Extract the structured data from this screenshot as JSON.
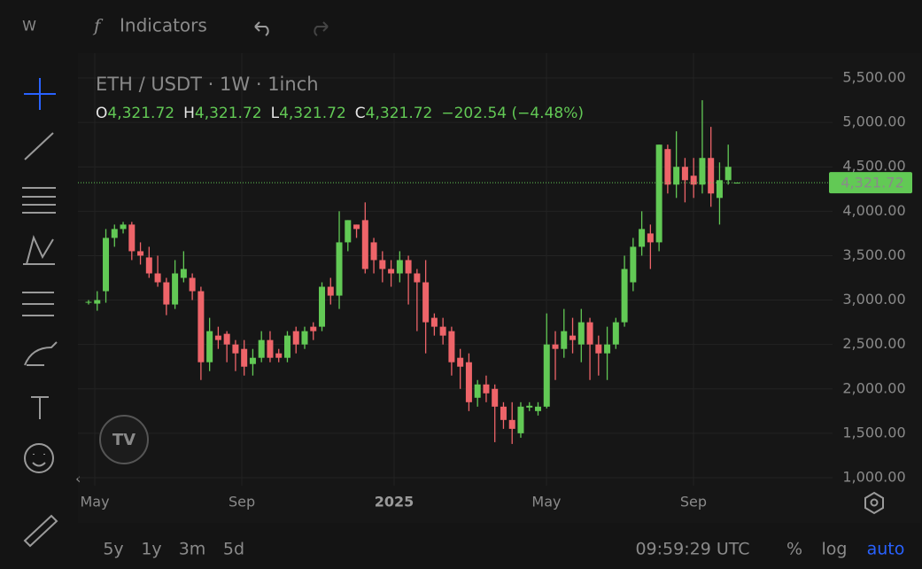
{
  "chart_data": {
    "type": "candlestick",
    "title": "ETH / USDT · 1W · 1inch",
    "ohlc_labels": [
      "O",
      "H",
      "L",
      "C"
    ],
    "ohlc_values": [
      "4,321.72",
      "4,321.72",
      "4,321.72",
      "4,321.72"
    ],
    "change": "−202.54 (−4.48%)",
    "up_color": "#62c955",
    "down_color": "#ee6469",
    "open": [
      2970,
      2960,
      3100,
      3700,
      3800,
      3850,
      3550,
      3480,
      3300,
      3200,
      2950,
      3250,
      3250,
      3100,
      2300,
      2600,
      2620,
      2500,
      2450,
      2280,
      2350,
      2550,
      2400,
      2350,
      2650,
      2500,
      2700,
      2700,
      3150,
      3050,
      3650,
      3850,
      3900,
      3650,
      3450,
      3350,
      3300,
      3450,
      3300,
      3200,
      2800,
      2700,
      2650,
      2350,
      2300,
      1900,
      2050,
      2000,
      1800,
      1650,
      1500,
      1790,
      1750,
      1800,
      2500,
      2450,
      2600,
      2500,
      2750,
      2500,
      2400,
      2500,
      2750,
      3200,
      3600,
      3750,
      3650,
      4700,
      4300,
      4500,
      4400,
      4300,
      4600,
      4150,
      4350,
      4320
    ],
    "high": [
      3000,
      3100,
      3800,
      3850,
      3880,
      3880,
      3650,
      3600,
      3500,
      3250,
      3450,
      3550,
      3300,
      3150,
      2800,
      2700,
      2650,
      2550,
      2550,
      2450,
      2650,
      2650,
      2450,
      2650,
      2700,
      2700,
      2750,
      3200,
      3250,
      4000,
      3900,
      3850,
      4100,
      3700,
      3550,
      3450,
      3550,
      3500,
      3350,
      3450,
      2850,
      2800,
      2700,
      2450,
      2400,
      2100,
      2150,
      2050,
      1850,
      1850,
      1850,
      1850,
      1850,
      2850,
      2650,
      2900,
      2800,
      2900,
      2800,
      2600,
      2700,
      2800,
      3500,
      3700,
      4000,
      3850,
      4750,
      4750,
      4900,
      4600,
      4600,
      5250,
      4950,
      4550,
      4750,
      4322
    ],
    "low": [
      2950,
      2880,
      2970,
      3600,
      3750,
      3450,
      3400,
      3250,
      3150,
      2830,
      2900,
      3200,
      3000,
      2100,
      2200,
      2450,
      2300,
      2200,
      2150,
      2150,
      2300,
      2300,
      2300,
      2300,
      2400,
      2450,
      2550,
      2650,
      2950,
      2900,
      3550,
      3700,
      3300,
      3300,
      3200,
      3150,
      3200,
      2950,
      2650,
      2400,
      2600,
      2500,
      2150,
      2000,
      1750,
      1800,
      1850,
      1400,
      1550,
      1380,
      1450,
      1750,
      1700,
      1780,
      2100,
      2350,
      2400,
      2300,
      2100,
      2150,
      2100,
      2450,
      2700,
      3100,
      3500,
      3350,
      3550,
      4200,
      4150,
      4100,
      4150,
      4200,
      4050,
      3850,
      4300,
      4320
    ],
    "close": [
      2980,
      3000,
      3700,
      3800,
      3850,
      3550,
      3500,
      3300,
      3200,
      2950,
      3300,
      3350,
      3100,
      2300,
      2650,
      2550,
      2500,
      2400,
      2250,
      2350,
      2550,
      2350,
      2350,
      2600,
      2500,
      2650,
      2650,
      3150,
      3050,
      3650,
      3900,
      3800,
      3350,
      3450,
      3350,
      3300,
      3450,
      3300,
      3200,
      2750,
      2700,
      2600,
      2300,
      2250,
      1850,
      2050,
      1950,
      1800,
      1650,
      1550,
      1800,
      1810,
      1800,
      2500,
      2450,
      2650,
      2550,
      2750,
      2500,
      2400,
      2500,
      2750,
      3350,
      3600,
      3800,
      3650,
      4750,
      4300,
      4500,
      4350,
      4300,
      4600,
      4200,
      4350,
      4500,
      4322
    ],
    "last_price": {
      "value": 4321.72,
      "label": "4,321.72"
    },
    "xlim": [
      -1.23,
      86.07
    ],
    "xticks": [
      {
        "value": 0.72,
        "label": "May"
      },
      {
        "value": 17.73,
        "label": "Sep"
      },
      {
        "value": 35.35,
        "label": "2025"
      },
      {
        "value": 52.97,
        "label": "May"
      },
      {
        "value": 69.98,
        "label": "Sep"
      }
    ],
    "ylim": [
      910,
      5680
    ],
    "yticks": [
      {
        "value": 1000,
        "label": "1,000.00"
      },
      {
        "value": 1500,
        "label": "1,500.00"
      },
      {
        "value": 2000,
        "label": "2,000.00"
      },
      {
        "value": 2500,
        "label": "2,500.00"
      },
      {
        "value": 3000,
        "label": "3,000.00"
      },
      {
        "value": 3500,
        "label": "3,500.00"
      },
      {
        "value": 4000,
        "label": "4,000.00"
      },
      {
        "value": 4500,
        "label": "4,500.00"
      },
      {
        "value": 5000,
        "label": "5,000.00"
      },
      {
        "value": 5500,
        "label": "5,500.00"
      }
    ],
    "grid": true
  },
  "toolbar": {
    "interval": "W",
    "indicators": "Indicators",
    "ranges": [
      "5y",
      "1y",
      "3m",
      "5d"
    ],
    "clock": "09:59:29 UTC",
    "percent": "%",
    "log": "log",
    "auto": "auto"
  }
}
